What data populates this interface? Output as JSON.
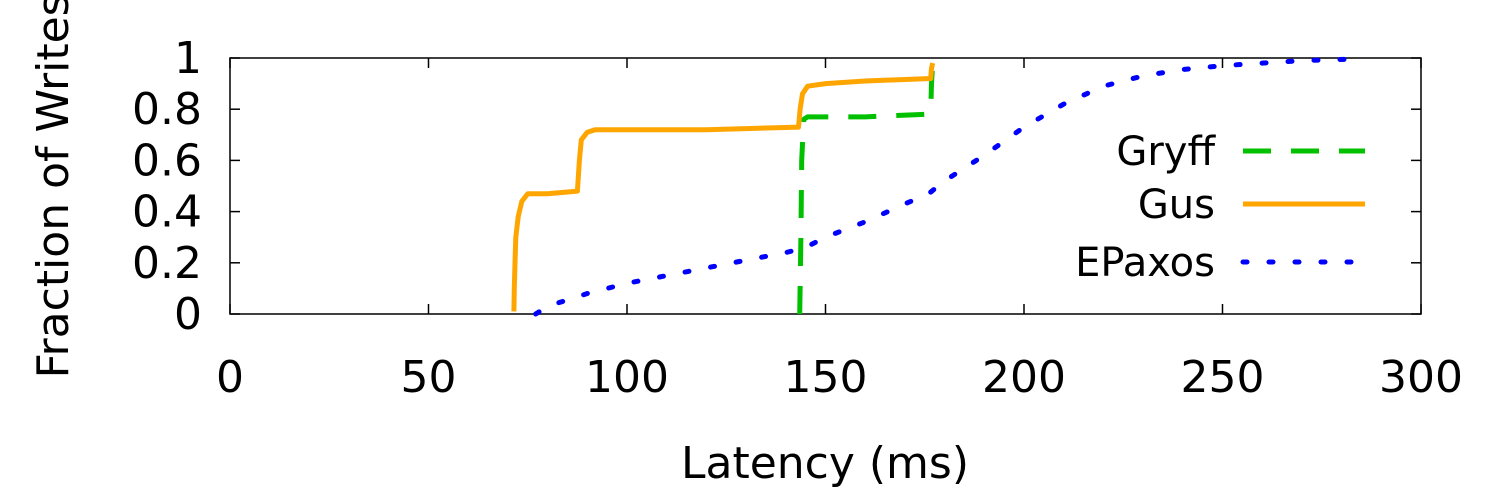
{
  "chart_data": {
    "type": "line",
    "title": "",
    "xlabel": "Latency (ms)",
    "ylabel": "Fraction of Writes",
    "xlim": [
      0,
      300
    ],
    "ylim": [
      0,
      1
    ],
    "x_ticks": [
      "0",
      "50",
      "100",
      "150",
      "200",
      "250",
      "300"
    ],
    "y_ticks": [
      "0",
      "0.2",
      "0.4",
      "0.6",
      "0.8",
      "1"
    ],
    "grid": false,
    "legend_position": "right",
    "series": [
      {
        "name": "Gryff",
        "color": "#00c000",
        "style": "dashed",
        "points": [
          [
            143.5,
            0
          ],
          [
            143.8,
            0.3
          ],
          [
            144.0,
            0.6
          ],
          [
            144.5,
            0.76
          ],
          [
            145.5,
            0.77
          ],
          [
            160,
            0.77
          ],
          [
            175,
            0.78
          ],
          [
            176.5,
            0.79
          ],
          [
            176.7,
            0.9
          ],
          [
            177,
            0.98
          ]
        ]
      },
      {
        "name": "Gus",
        "color": "#ffa500",
        "style": "solid",
        "points": [
          [
            71.5,
            0.01
          ],
          [
            71.6,
            0.1
          ],
          [
            71.8,
            0.2
          ],
          [
            72,
            0.3
          ],
          [
            72.6,
            0.38
          ],
          [
            73.5,
            0.44
          ],
          [
            75,
            0.47
          ],
          [
            80,
            0.47
          ],
          [
            87.5,
            0.48
          ],
          [
            88,
            0.6
          ],
          [
            88.5,
            0.68
          ],
          [
            90,
            0.71
          ],
          [
            92,
            0.72
          ],
          [
            120,
            0.72
          ],
          [
            143.2,
            0.73
          ],
          [
            143.6,
            0.8
          ],
          [
            144.2,
            0.86
          ],
          [
            145.5,
            0.89
          ],
          [
            150,
            0.9
          ],
          [
            160,
            0.91
          ],
          [
            176.5,
            0.92
          ],
          [
            176.7,
            0.96
          ],
          [
            177,
            0.98
          ]
        ]
      },
      {
        "name": "EPaxos",
        "color": "#0000ff",
        "style": "dotted",
        "points": [
          [
            77,
            0
          ],
          [
            80,
            0.03
          ],
          [
            90,
            0.08
          ],
          [
            100,
            0.12
          ],
          [
            110,
            0.15
          ],
          [
            120,
            0.18
          ],
          [
            130,
            0.21
          ],
          [
            140,
            0.24
          ],
          [
            145,
            0.26
          ],
          [
            150,
            0.3
          ],
          [
            160,
            0.36
          ],
          [
            170,
            0.43
          ],
          [
            176,
            0.47
          ],
          [
            180,
            0.52
          ],
          [
            190,
            0.62
          ],
          [
            200,
            0.73
          ],
          [
            210,
            0.82
          ],
          [
            220,
            0.89
          ],
          [
            230,
            0.93
          ],
          [
            240,
            0.955
          ],
          [
            250,
            0.97
          ],
          [
            260,
            0.98
          ],
          [
            270,
            0.99
          ],
          [
            281,
            0.995
          ]
        ]
      }
    ]
  }
}
